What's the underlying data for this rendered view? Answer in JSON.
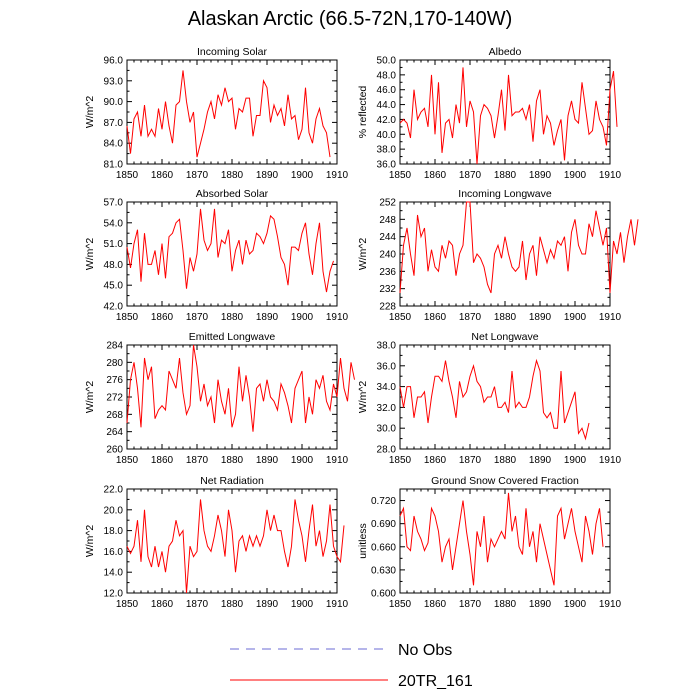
{
  "title": "Alaskan Arctic (66.5-72N,170-140W)",
  "colors": {
    "series": "#ff0000",
    "obs_dash_a": "#d9534f",
    "obs_dash_b": "#3a3aff",
    "axis": "#000000"
  },
  "legend": [
    {
      "label": "No Obs",
      "style": "dashed"
    },
    {
      "label": "20TR_161",
      "style": "solid"
    }
  ],
  "chart_data": [
    {
      "type": "line",
      "title": "Incoming Solar",
      "ylabel": "W/m^2",
      "xlabel": "",
      "xlim": [
        1850,
        1910
      ],
      "ylim": [
        81.0,
        96.0
      ],
      "xticks": [
        1850,
        1860,
        1870,
        1880,
        1890,
        1900,
        1910
      ],
      "yticks": [
        81.0,
        84.0,
        87.0,
        90.0,
        93.0,
        96.0
      ],
      "ytick_labels": [
        "81.0",
        "84.0",
        "87.0",
        "90.0",
        "93.0",
        "96.0"
      ],
      "x_start": 1850,
      "series": [
        {
          "name": "20TR_161",
          "values": [
            86.5,
            82.5,
            87.5,
            88.5,
            85.0,
            89.5,
            85.0,
            86.0,
            85.0,
            89.0,
            86.0,
            90.0,
            86.5,
            84.0,
            89.5,
            90.0,
            94.5,
            90.0,
            87.0,
            88.5,
            82.0,
            84.0,
            86.0,
            88.5,
            90.0,
            87.5,
            91.0,
            89.5,
            92.0,
            90.0,
            90.5,
            86.0,
            89.0,
            88.5,
            90.5,
            90.5,
            85.0,
            88.0,
            88.0,
            93.0,
            92.0,
            87.0,
            89.5,
            88.0,
            89.0,
            86.5,
            91.0,
            87.5,
            88.0,
            84.5,
            86.0,
            92.0,
            85.5,
            84.0,
            87.5,
            89.0,
            86.5,
            85.5,
            82.0
          ]
        }
      ]
    },
    {
      "type": "line",
      "title": "Albedo",
      "ylabel": "% reflected",
      "xlabel": "",
      "xlim": [
        1850,
        1910
      ],
      "ylim": [
        36.0,
        50.0
      ],
      "xticks": [
        1850,
        1860,
        1870,
        1880,
        1890,
        1900,
        1910
      ],
      "yticks": [
        36.0,
        38.0,
        40.0,
        42.0,
        44.0,
        46.0,
        48.0,
        50.0
      ],
      "ytick_labels": [
        "36.0",
        "38.0",
        "40.0",
        "42.0",
        "44.0",
        "46.0",
        "48.0",
        "50.0"
      ],
      "x_start": 1850,
      "series": [
        {
          "name": "20TR_161",
          "values": [
            41.5,
            42.0,
            41.5,
            39.5,
            46.0,
            42.0,
            43.0,
            43.5,
            41.0,
            48.0,
            40.0,
            47.0,
            37.5,
            41.5,
            42.0,
            39.5,
            44.0,
            41.5,
            49.0,
            41.0,
            44.5,
            43.0,
            36.0,
            42.5,
            44.0,
            43.5,
            42.5,
            39.5,
            42.5,
            46.0,
            40.5,
            48.0,
            42.5,
            43.0,
            43.0,
            43.5,
            42.0,
            44.0,
            39.0,
            44.5,
            46.0,
            40.0,
            42.5,
            41.5,
            38.5,
            40.5,
            42.0,
            36.5,
            42.5,
            44.5,
            42.0,
            41.5,
            47.0,
            43.5,
            40.0,
            40.5,
            44.5,
            42.0,
            41.0,
            38.5,
            46.0,
            48.5,
            41.0
          ]
        }
      ]
    },
    {
      "type": "line",
      "title": "Absorbed Solar",
      "ylabel": "W/m^2",
      "xlabel": "",
      "xlim": [
        1850,
        1910
      ],
      "ylim": [
        42.0,
        57.0
      ],
      "xticks": [
        1850,
        1860,
        1870,
        1880,
        1890,
        1900,
        1910
      ],
      "yticks": [
        42.0,
        45.0,
        48.0,
        51.0,
        54.0,
        57.0
      ],
      "ytick_labels": [
        "42.0",
        "45.0",
        "48.0",
        "51.0",
        "54.0",
        "57.0"
      ],
      "x_start": 1850,
      "series": [
        {
          "name": "20TR_161",
          "values": [
            50.5,
            47.5,
            51.0,
            53.0,
            45.5,
            52.5,
            48.0,
            48.0,
            50.0,
            46.5,
            51.0,
            46.0,
            52.0,
            52.5,
            54.0,
            54.5,
            50.0,
            44.5,
            49.0,
            47.0,
            49.5,
            56.0,
            51.5,
            50.0,
            51.0,
            56.0,
            49.0,
            51.5,
            51.0,
            53.0,
            47.0,
            50.0,
            51.5,
            48.0,
            51.5,
            49.5,
            50.0,
            52.5,
            52.0,
            51.0,
            52.5,
            55.0,
            54.5,
            52.0,
            49.0,
            48.0,
            45.0,
            50.5,
            50.5,
            50.0,
            52.5,
            54.0,
            49.5,
            46.5,
            51.0,
            54.0,
            47.0,
            44.0,
            47.0,
            48.5
          ]
        }
      ]
    },
    {
      "type": "line",
      "title": "Incoming Longwave",
      "ylabel": "W/m^2",
      "xlabel": "",
      "xlim": [
        1850,
        1910
      ],
      "ylim": [
        228,
        252
      ],
      "xticks": [
        1850,
        1860,
        1870,
        1880,
        1890,
        1900,
        1910
      ],
      "yticks": [
        228,
        232,
        236,
        240,
        244,
        248,
        252
      ],
      "ytick_labels": [
        "228",
        "232",
        "236",
        "240",
        "244",
        "248",
        "252"
      ],
      "x_start": 1850,
      "series": [
        {
          "name": "20TR_161",
          "values": [
            231,
            242,
            246,
            240,
            235,
            249,
            244,
            246,
            236,
            241,
            237,
            236,
            242,
            239,
            243,
            242,
            235,
            240,
            242,
            252,
            252,
            238,
            240,
            239,
            237,
            233,
            231,
            240,
            242,
            239,
            244,
            240,
            237,
            236,
            237,
            243,
            234,
            240,
            242,
            235,
            244,
            241,
            238,
            241,
            239,
            243,
            242,
            244,
            236,
            245,
            248,
            242,
            240,
            240,
            247,
            244,
            250,
            246,
            242,
            246,
            231,
            243,
            240,
            245,
            238,
            244,
            248,
            242,
            248
          ]
        }
      ]
    },
    {
      "type": "line",
      "title": "Emitted Longwave",
      "ylabel": "W/m^2",
      "xlabel": "",
      "xlim": [
        1850,
        1910
      ],
      "ylim": [
        260,
        284
      ],
      "xticks": [
        1850,
        1860,
        1870,
        1880,
        1890,
        1900,
        1910
      ],
      "yticks": [
        260,
        264,
        268,
        272,
        276,
        280,
        284
      ],
      "ytick_labels": [
        "260",
        "264",
        "268",
        "272",
        "276",
        "280",
        "284"
      ],
      "x_start": 1850,
      "series": [
        {
          "name": "20TR_161",
          "values": [
            266,
            276,
            280,
            274,
            265,
            281,
            276,
            279,
            267,
            269,
            270,
            269,
            278,
            276,
            274,
            281,
            273,
            268,
            270,
            284,
            279,
            271,
            275,
            270,
            272,
            266,
            276,
            271,
            268,
            274,
            265,
            268,
            279,
            271,
            277,
            272,
            264,
            274,
            275,
            271,
            276,
            272,
            271,
            269,
            275,
            273,
            270,
            266,
            274,
            276,
            278,
            266,
            272,
            268,
            276,
            274,
            277,
            271,
            269,
            275,
            272,
            281,
            274,
            271,
            280,
            276
          ]
        }
      ]
    },
    {
      "type": "line",
      "title": "Net Longwave",
      "ylabel": "W/m^2",
      "xlabel": "",
      "xlim": [
        1850,
        1910
      ],
      "ylim": [
        28.0,
        38.0
      ],
      "xticks": [
        1850,
        1860,
        1870,
        1880,
        1890,
        1900,
        1910
      ],
      "yticks": [
        28.0,
        30.0,
        32.0,
        34.0,
        36.0,
        38.0
      ],
      "ytick_labels": [
        "28.0",
        "30.0",
        "32.0",
        "34.0",
        "36.0",
        "38.0"
      ],
      "x_start": 1850,
      "series": [
        {
          "name": "20TR_161",
          "values": [
            34.0,
            32.0,
            34.0,
            34.0,
            31.0,
            33.0,
            33.0,
            33.5,
            30.5,
            33.0,
            35.0,
            35.0,
            34.5,
            36.5,
            34.5,
            33.0,
            31.0,
            34.5,
            33.0,
            33.5,
            35.0,
            36.0,
            34.5,
            34.0,
            32.5,
            33.0,
            33.0,
            34.0,
            32.0,
            32.0,
            32.5,
            31.5,
            35.5,
            32.0,
            32.5,
            32.0,
            32.0,
            33.0,
            35.0,
            36.5,
            35.5,
            31.5,
            31.0,
            31.5,
            30.0,
            30.0,
            35.5,
            30.5,
            31.5,
            32.5,
            33.5,
            29.5,
            30.0,
            29.0,
            30.5
          ]
        }
      ]
    },
    {
      "type": "line",
      "title": "Net Radiation",
      "ylabel": "W/m^2",
      "xlabel": "",
      "xlim": [
        1850,
        1910
      ],
      "ylim": [
        12.0,
        22.0
      ],
      "xticks": [
        1850,
        1860,
        1870,
        1880,
        1890,
        1900,
        1910
      ],
      "yticks": [
        12.0,
        14.0,
        16.0,
        18.0,
        20.0,
        22.0
      ],
      "ytick_labels": [
        "12.0",
        "14.0",
        "16.0",
        "18.0",
        "20.0",
        "22.0"
      ],
      "x_start": 1850,
      "series": [
        {
          "name": "20TR_161",
          "values": [
            16.5,
            15.8,
            16.5,
            19.0,
            15.0,
            20.0,
            15.5,
            14.5,
            16.5,
            14.5,
            16.0,
            14.0,
            16.5,
            17.0,
            19.0,
            17.5,
            18.0,
            12.0,
            16.5,
            15.5,
            16.0,
            21.0,
            18.0,
            16.5,
            16.0,
            17.5,
            19.5,
            18.0,
            15.5,
            20.0,
            18.0,
            14.0,
            17.0,
            17.5,
            16.0,
            17.5,
            16.5,
            17.5,
            16.5,
            17.5,
            20.0,
            18.0,
            19.5,
            18.0,
            18.0,
            16.0,
            14.5,
            16.5,
            21.0,
            19.0,
            17.5,
            15.0,
            18.0,
            20.5,
            16.5,
            18.0,
            15.5,
            17.0,
            20.5,
            16.5,
            15.5,
            15.0,
            18.5
          ]
        }
      ]
    },
    {
      "type": "line",
      "title": "Ground Snow Covered Fraction",
      "ylabel": "unitless",
      "xlabel": "",
      "xlim": [
        1850,
        1910
      ],
      "ylim": [
        0.6,
        0.735
      ],
      "xticks": [
        1850,
        1860,
        1870,
        1880,
        1890,
        1900,
        1910
      ],
      "yticks": [
        0.6,
        0.63,
        0.66,
        0.69,
        0.72
      ],
      "ytick_labels": [
        "0.600",
        "0.630",
        "0.660",
        "0.690",
        "0.720"
      ],
      "x_start": 1850,
      "series": [
        {
          "name": "20TR_161",
          "values": [
            0.7,
            0.71,
            0.66,
            0.655,
            0.7,
            0.68,
            0.67,
            0.655,
            0.665,
            0.71,
            0.7,
            0.68,
            0.64,
            0.66,
            0.67,
            0.63,
            0.66,
            0.69,
            0.72,
            0.68,
            0.65,
            0.61,
            0.68,
            0.66,
            0.7,
            0.64,
            0.67,
            0.66,
            0.67,
            0.68,
            0.67,
            0.73,
            0.68,
            0.7,
            0.66,
            0.65,
            0.71,
            0.66,
            0.68,
            0.64,
            0.69,
            0.67,
            0.65,
            0.63,
            0.61,
            0.7,
            0.71,
            0.67,
            0.69,
            0.71,
            0.68,
            0.66,
            0.64,
            0.7,
            0.68,
            0.65,
            0.69,
            0.71,
            0.66
          ]
        }
      ]
    }
  ]
}
